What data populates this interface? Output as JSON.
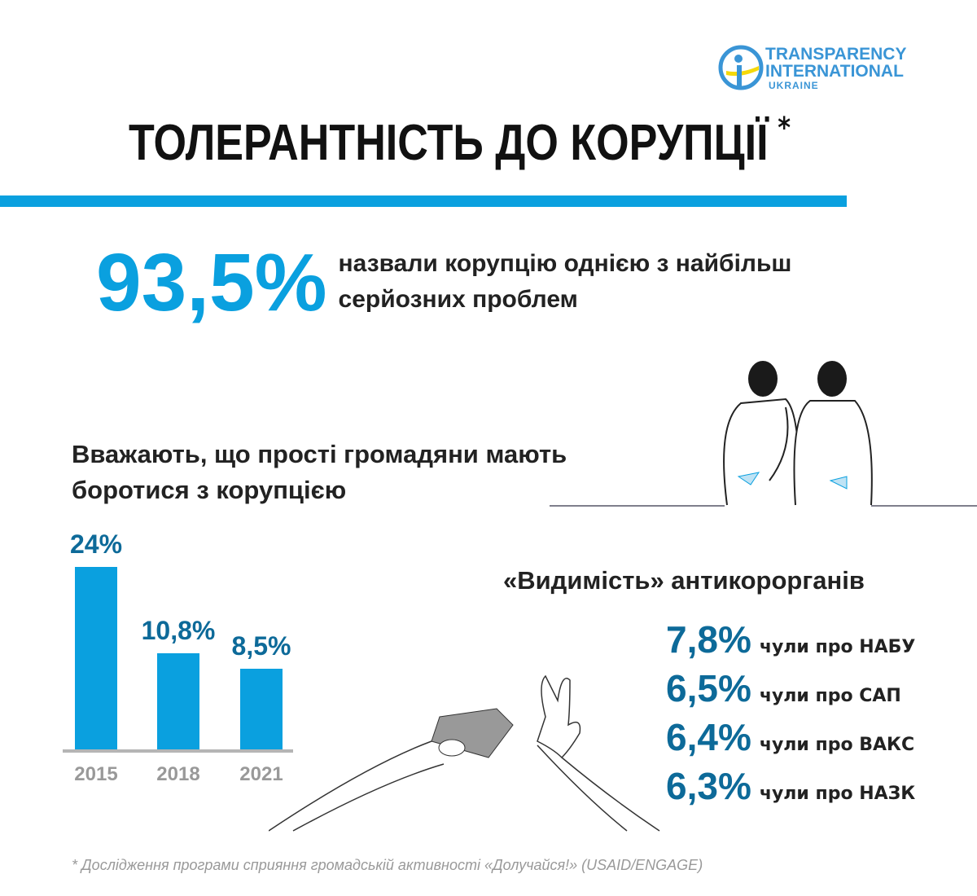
{
  "logo": {
    "line1": "TRANSPARENCY",
    "line2": "INTERNATIONAL",
    "line3": "UKRAINE"
  },
  "title": "ТОЛЕРАНТНІСТЬ ДО КОРУПЦІЇ",
  "title_mark": "*",
  "headline": {
    "value": "93,5%",
    "text": "назвали корупцію однією з найбільш серйозних проблем"
  },
  "chart_data": {
    "type": "bar",
    "title": "Вважають, що прості громадяни мають боротися з корупцією",
    "categories": [
      "2015",
      "2018",
      "2021"
    ],
    "values": [
      24,
      10.8,
      8.5
    ],
    "labels": [
      "24%",
      "10,8%",
      "8,5%"
    ],
    "xlabel": "",
    "ylabel": "",
    "grid": false
  },
  "visibility": {
    "title": "«Видимість» антикорорганів",
    "items": [
      {
        "value": "7,8%",
        "text": "чули про НАБУ"
      },
      {
        "value": "6,5%",
        "text": "чули про САП"
      },
      {
        "value": "6,4%",
        "text": "чули про ВАКС"
      },
      {
        "value": "6,3%",
        "text": "чули про НАЗК"
      }
    ]
  },
  "footnote": "* Дослідження програми сприяння громадській активності «Долучайся!» (USAID/ENGAGE)",
  "colors": {
    "accent": "#0aa0df",
    "dark": "#0d6a99",
    "yellow": "#f5d90a"
  }
}
